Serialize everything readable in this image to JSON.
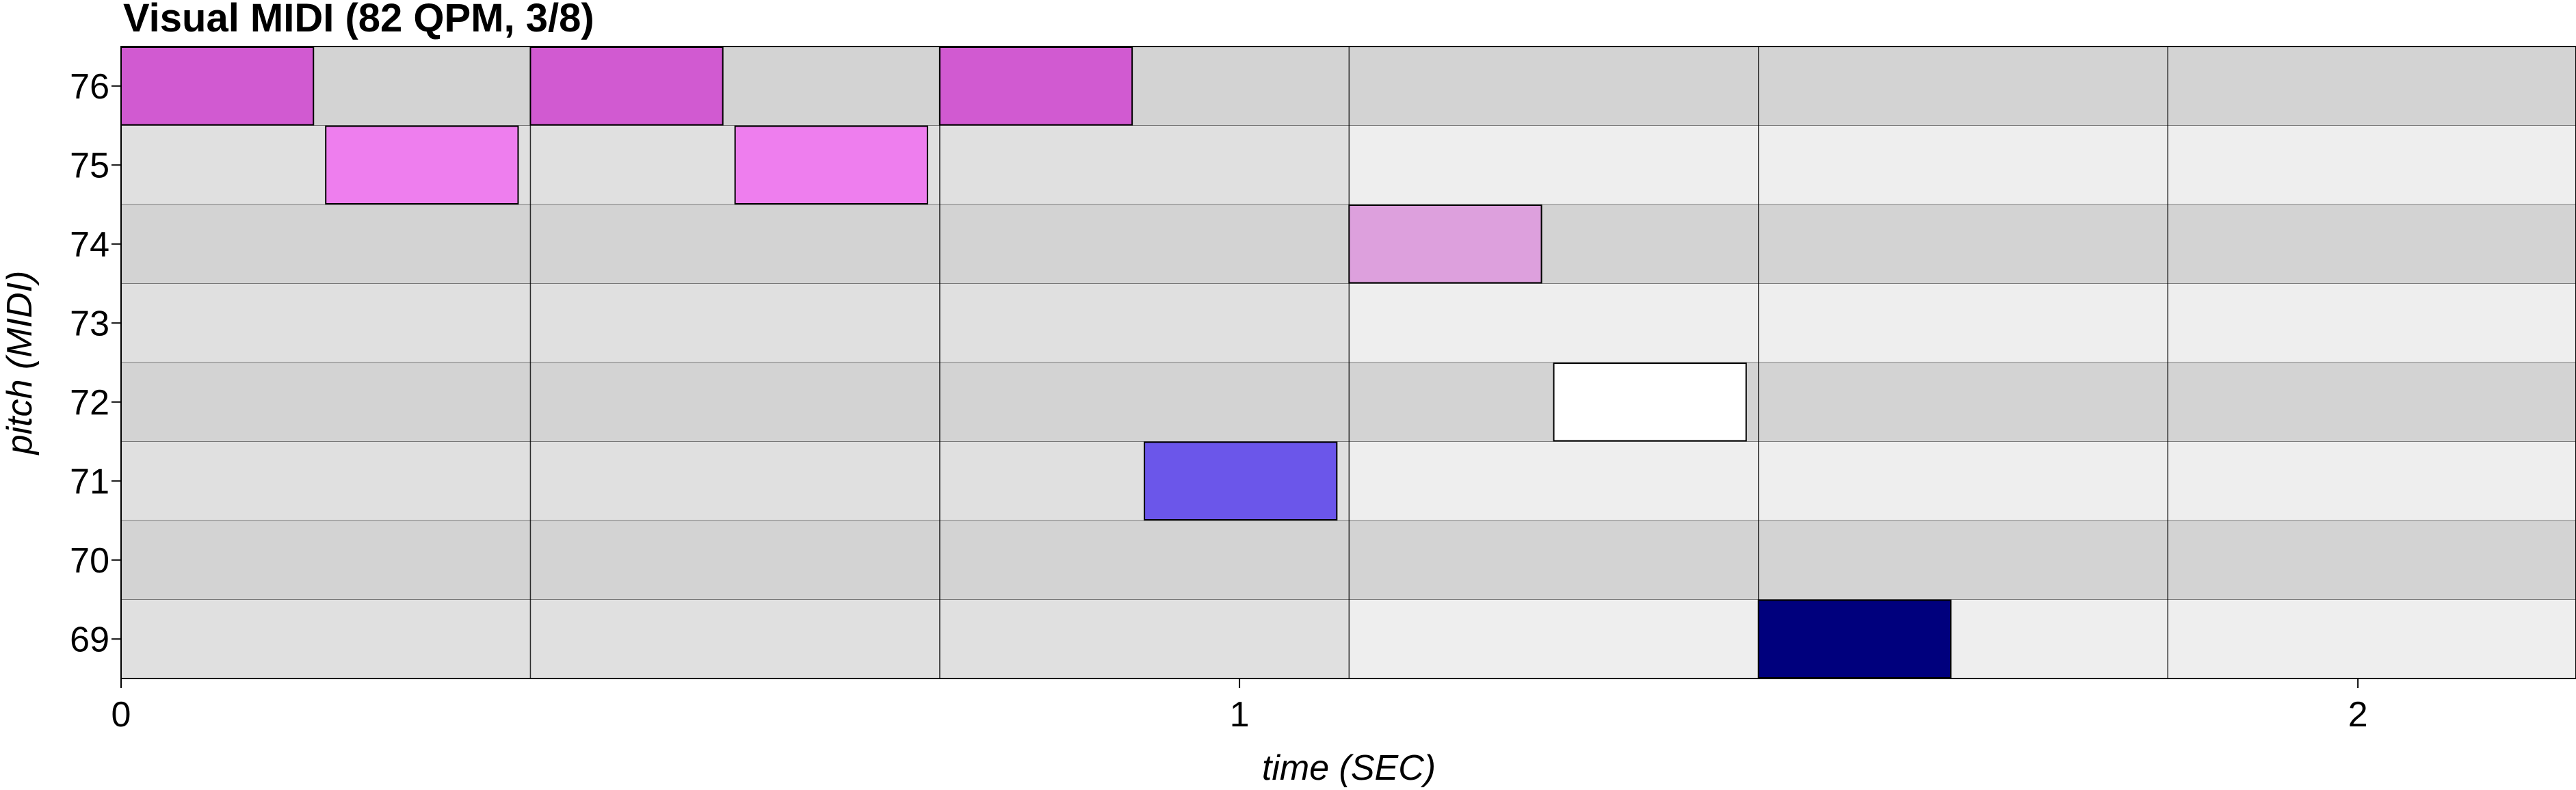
{
  "chart_data": {
    "type": "piano-roll",
    "title": "Visual MIDI (82 QPM, 3/8)",
    "xlabel": "time (SEC)",
    "ylabel": "pitch (MIDI)",
    "xlim": [
      0,
      2.195
    ],
    "x_ticks": [
      0,
      1,
      2
    ],
    "x_tick_labels": [
      "0",
      "1",
      "2"
    ],
    "pitches": [
      76,
      75,
      74,
      73,
      72,
      71,
      70,
      69
    ],
    "pitch_labels": [
      "76",
      "75",
      "74",
      "73",
      "72",
      "71",
      "70",
      "69"
    ],
    "beat_length_sec": 0.366,
    "measure_length_sec": 1.098,
    "notes": [
      {
        "pitch": 76,
        "start": 0.0,
        "end": 0.172,
        "color": "#d15ad1"
      },
      {
        "pitch": 75,
        "start": 0.183,
        "end": 0.355,
        "color": "#ee7eee"
      },
      {
        "pitch": 76,
        "start": 0.366,
        "end": 0.538,
        "color": "#d15ad1"
      },
      {
        "pitch": 75,
        "start": 0.549,
        "end": 0.721,
        "color": "#ee7eee"
      },
      {
        "pitch": 76,
        "start": 0.732,
        "end": 0.904,
        "color": "#d15ad1"
      },
      {
        "pitch": 71,
        "start": 0.915,
        "end": 1.087,
        "color": "#6b56ea"
      },
      {
        "pitch": 74,
        "start": 1.098,
        "end": 1.27,
        "color": "#dda0dd"
      },
      {
        "pitch": 72,
        "start": 1.281,
        "end": 1.453,
        "color": "#ffffff"
      },
      {
        "pitch": 69,
        "start": 1.464,
        "end": 1.636,
        "color": "#00007d"
      }
    ],
    "colors": {
      "measure_a_dark_row": "#d3d3d3",
      "measure_a_light_row": "#e0e0e0",
      "measure_b_dark_row": "#e8e8e8",
      "measure_b_light_row": "#f8f8f8",
      "edge_dark_row": "#d3d3d3",
      "edge_light_row": "#eeeeee",
      "grid_line": "#000000",
      "note_outline": "#000000"
    }
  }
}
